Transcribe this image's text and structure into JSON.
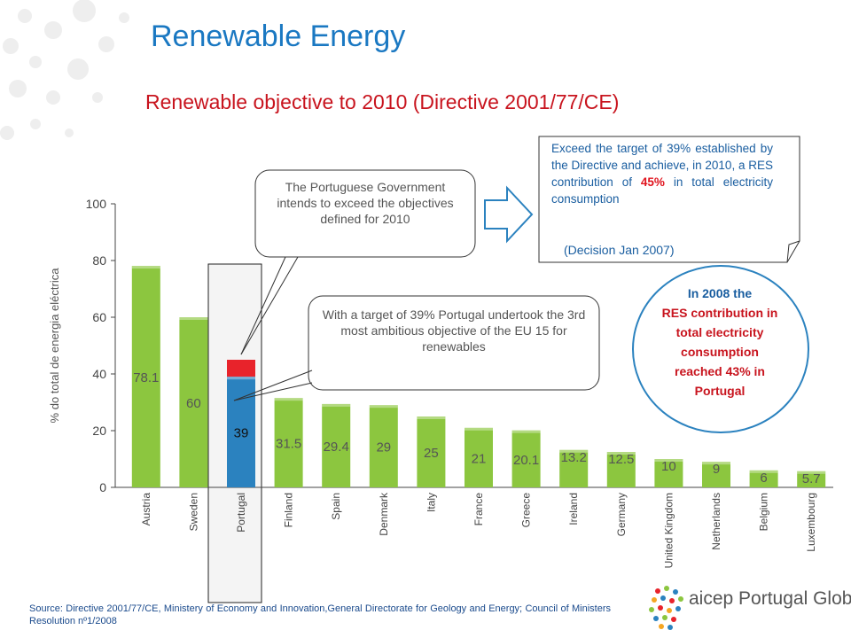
{
  "page": {
    "title": "Renewable Energy",
    "subtitle": "Renewable objective to 2010 (Directive 2001/77/CE)"
  },
  "chart_data": {
    "type": "bar",
    "ylabel": "% do total de energia eléctrica",
    "xlabel": "",
    "ylim": [
      0,
      100
    ],
    "yticks": [
      0,
      20,
      40,
      60,
      80,
      100
    ],
    "grid": false,
    "categories": [
      "Austria",
      "Sweden",
      "Portugal",
      "Finland",
      "Spain",
      "Denmark",
      "Italy",
      "France",
      "Greece",
      "Ireland",
      "Germany",
      "United Kingdom",
      "Netherlands",
      "Belgium",
      "Luxembourg"
    ],
    "values": [
      78.1,
      60,
      39,
      31.5,
      29.4,
      29,
      25,
      21,
      20.1,
      13.2,
      12.5,
      10,
      9,
      6,
      5.7
    ],
    "labels": [
      "78.1",
      "60",
      "39",
      "31.5",
      "29.4",
      "29",
      "25",
      "21",
      "20.1",
      "13.2",
      "12.5",
      "10",
      "9",
      "6",
      "5.7"
    ],
    "highlight": {
      "category": "Portugal",
      "extra_to": 45,
      "extra_color": "#e8232b",
      "bar_color": "#2b82bf"
    },
    "bar_color": "#8cc63f",
    "label_color": "#555555"
  },
  "callouts": {
    "government": "The Portuguese Government intends to exceed the objectives defined for 2010",
    "ambitious": "With a target of 39% Portugal undertook the 3rd most ambitious objective of the EU 15 for renewables",
    "target_before": "Exceed the target of 39% established by the Directive and achieve, in 2010, a RES contribution of ",
    "target_highlight": "45%",
    "target_after": " in total electricity consumption",
    "decision": "(Decision Jan 2007)"
  },
  "ellipse": {
    "lines": [
      "In 2008 the",
      "RES contribution in",
      "total electricity",
      "consumption",
      "reached 43% in",
      "Portugal"
    ]
  },
  "source": "Source: Directive 2001/77/CE, Ministery of Economy and Innovation,General Directorate for Geology and Energy; Council of Ministers Resolution nº1/2008",
  "logo": {
    "text_a": "aicep",
    "text_b": " Portugal Global"
  },
  "colors": {
    "title": "#1a78c2",
    "subtitle": "#c8141e",
    "bubble_border": "#333333",
    "ellipse_border": "#2b82bf"
  }
}
